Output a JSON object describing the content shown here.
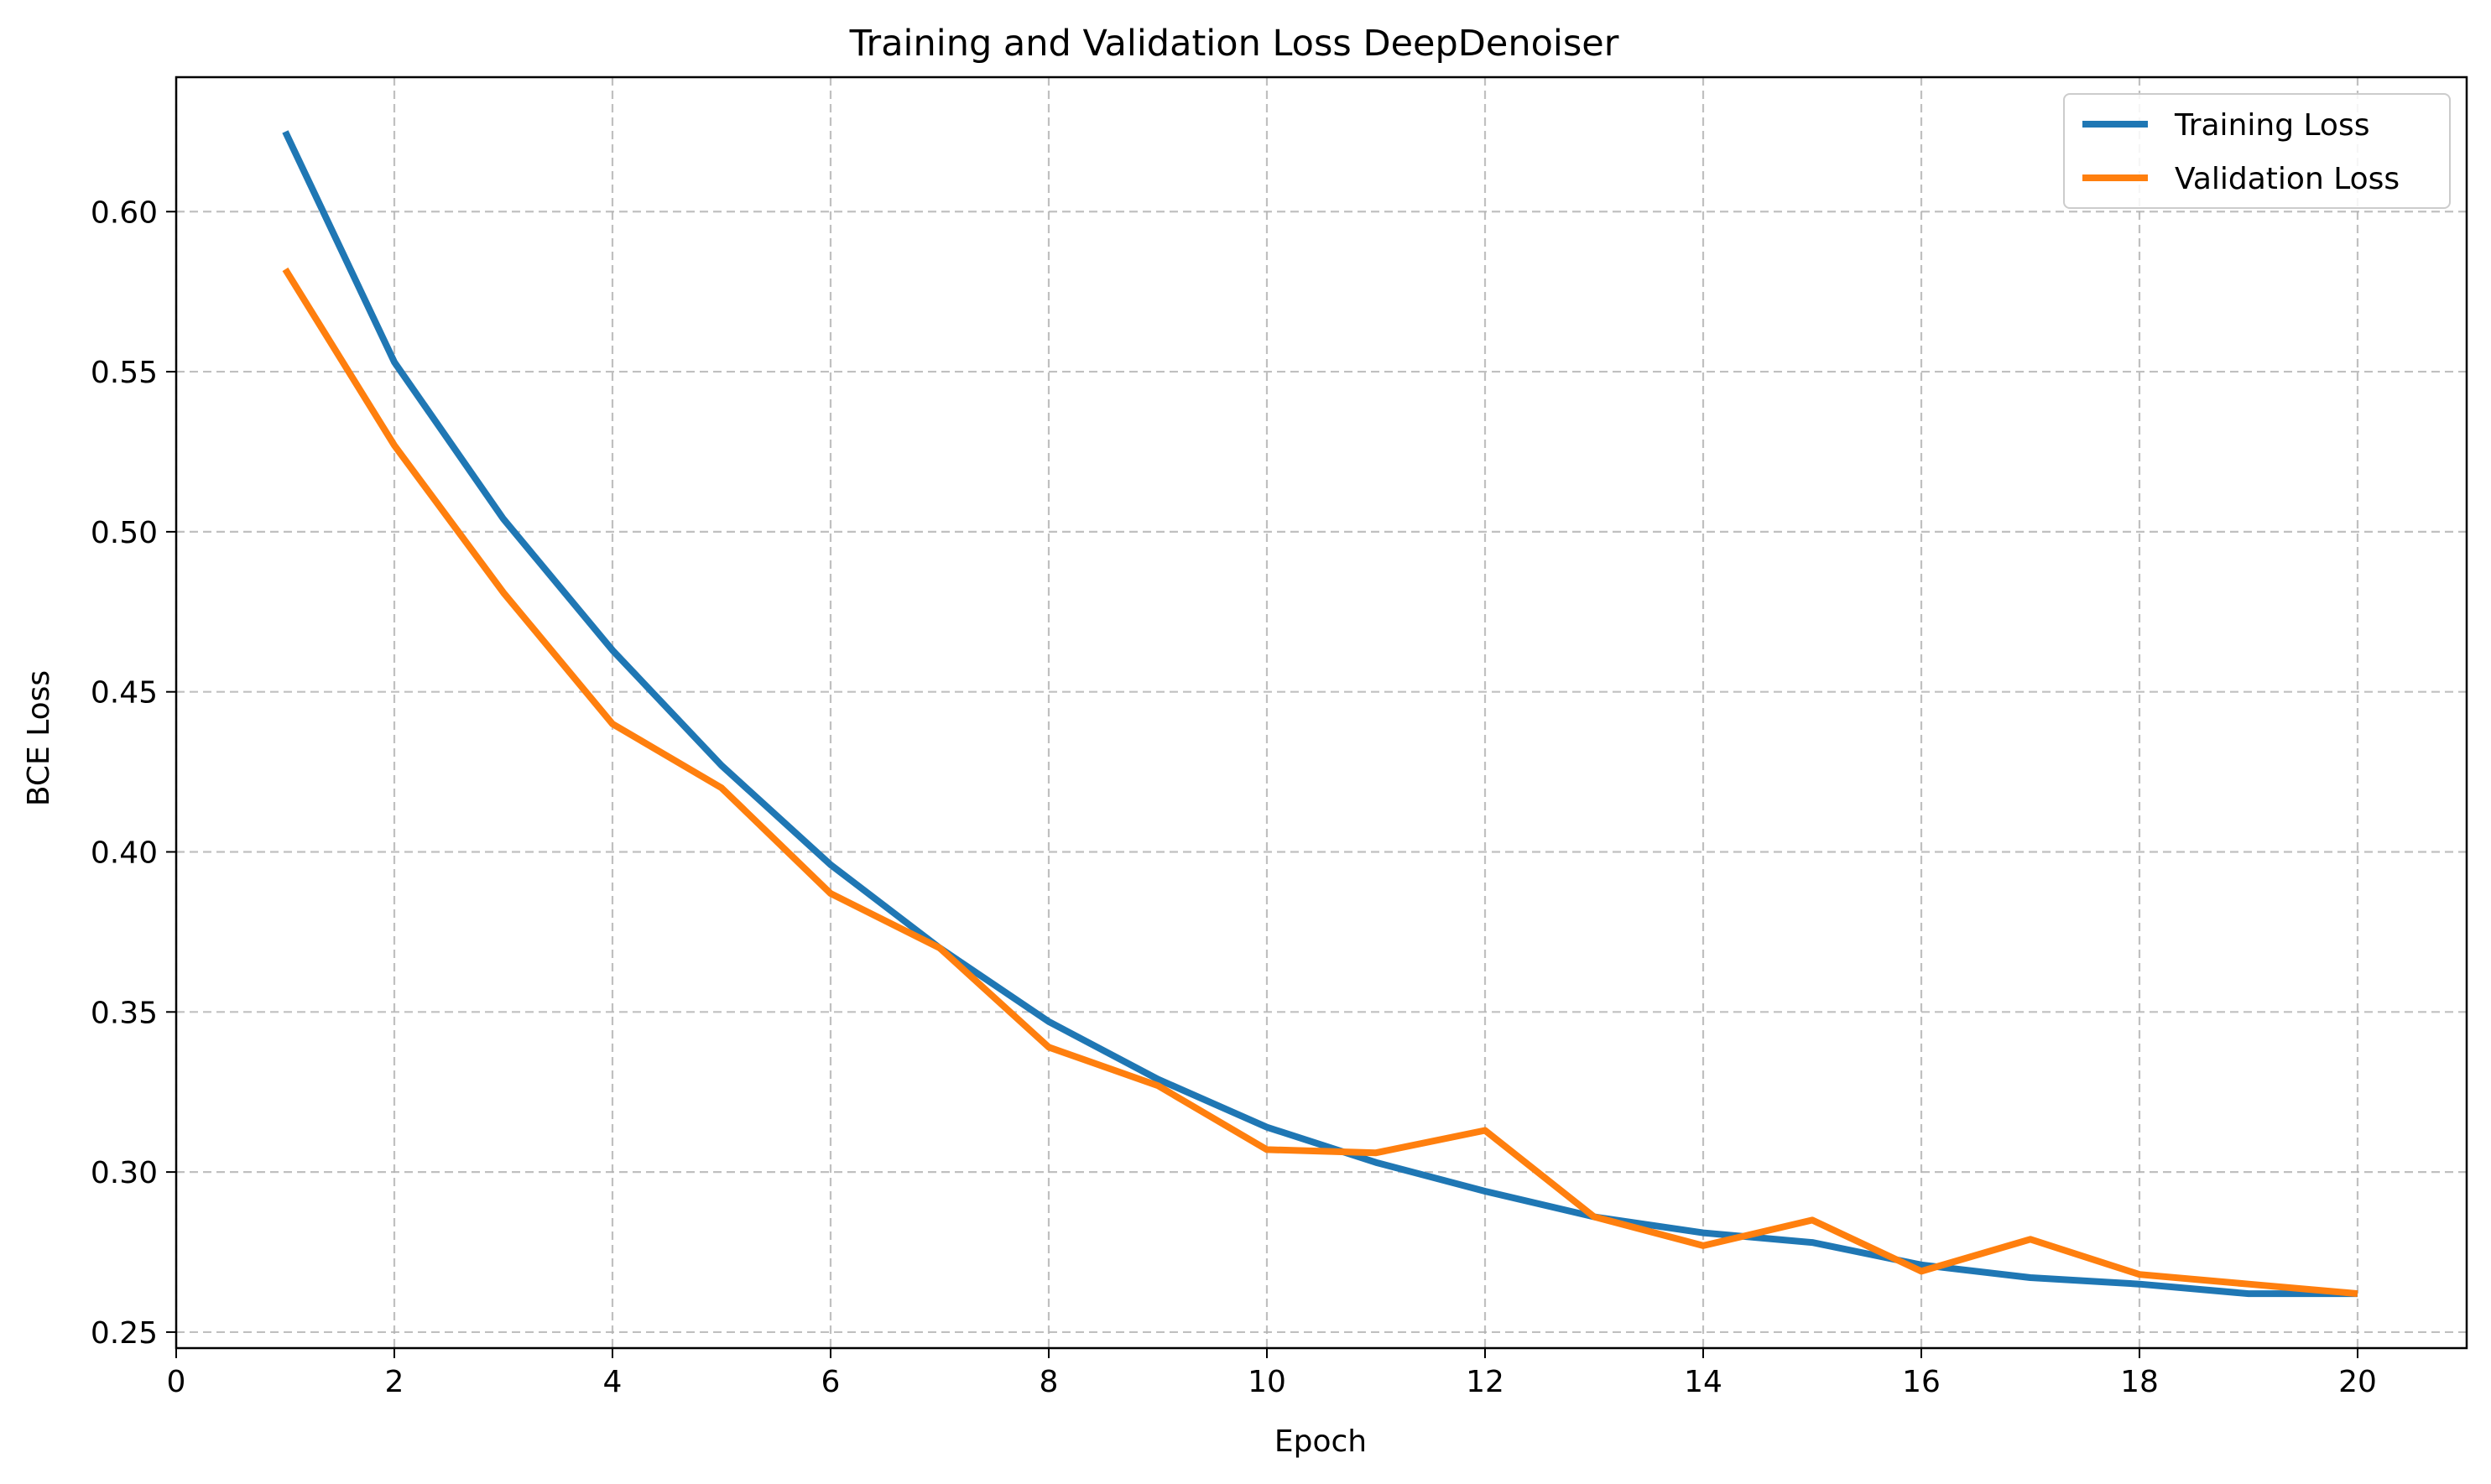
{
  "chart_data": {
    "type": "line",
    "title": "Training and Validation Loss DeepDenoiser",
    "xlabel": "Epoch",
    "ylabel": "BCE Loss",
    "xlim": [
      0,
      21
    ],
    "ylim": [
      0.245,
      0.642
    ],
    "xticks": [
      0,
      2,
      4,
      6,
      8,
      10,
      12,
      14,
      16,
      18,
      20
    ],
    "yticks": [
      0.25,
      0.3,
      0.35,
      0.4,
      0.45,
      0.5,
      0.55,
      0.6
    ],
    "ytick_labels": [
      "0.25",
      "0.30",
      "0.35",
      "0.40",
      "0.45",
      "0.50",
      "0.55",
      "0.60"
    ],
    "grid": true,
    "legend_position": "top-right",
    "x": [
      1,
      2,
      3,
      4,
      5,
      6,
      7,
      8,
      9,
      10,
      11,
      12,
      13,
      14,
      15,
      16,
      17,
      18,
      19,
      20
    ],
    "series": [
      {
        "name": "Training Loss",
        "color": "#1f77b4",
        "values": [
          0.625,
          0.553,
          0.504,
          0.463,
          0.427,
          0.396,
          0.37,
          0.347,
          0.329,
          0.314,
          0.303,
          0.294,
          0.286,
          0.281,
          0.278,
          0.271,
          0.267,
          0.265,
          0.262,
          0.262
        ]
      },
      {
        "name": "Validation Loss",
        "color": "#ff7f0e",
        "values": [
          0.582,
          0.527,
          0.481,
          0.44,
          0.42,
          0.387,
          0.37,
          0.339,
          0.327,
          0.307,
          0.306,
          0.313,
          0.286,
          0.277,
          0.285,
          0.269,
          0.279,
          0.268,
          0.265,
          0.262
        ]
      }
    ]
  }
}
